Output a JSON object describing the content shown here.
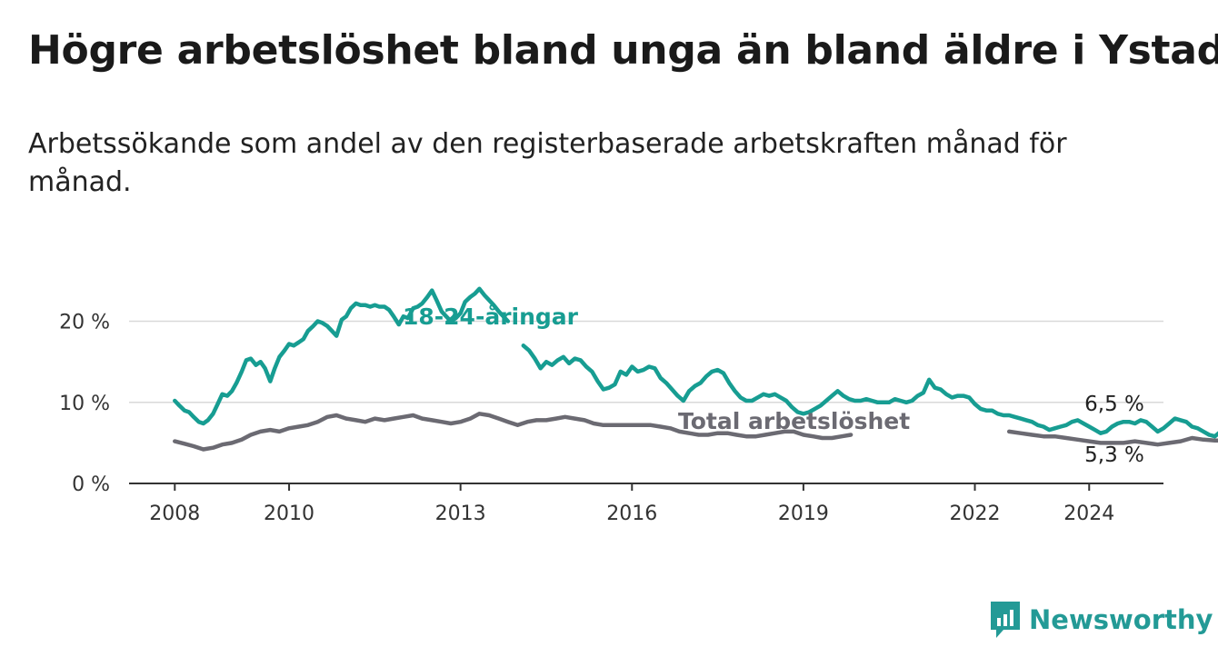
{
  "title": "Högre arbetslöshet bland unga än bland äldre i Ystad",
  "subtitle": "Arbetssökande som andel av den registerbaserade arbetskraften månad för månad.",
  "brand": {
    "name": "Newsworthy",
    "color": "#239a96"
  },
  "chart_data": {
    "type": "line",
    "x_ticks": [
      2008,
      2010,
      2013,
      2016,
      2019,
      2022,
      2024
    ],
    "y_ticks": [
      "0 %",
      "10 %",
      "20 %"
    ],
    "y_tick_values": [
      0,
      10,
      20
    ],
    "xlim": [
      2007.2,
      2025.3
    ],
    "ylim": [
      0,
      26
    ],
    "grid": "horizontal",
    "series": [
      {
        "name": "18-24-åringar",
        "color": "#179d92",
        "end_label": "6,5 %",
        "points": [
          [
            2008.0,
            10.2
          ],
          [
            2008.08,
            9.6
          ],
          [
            2008.17,
            9.0
          ],
          [
            2008.25,
            8.8
          ],
          [
            2008.33,
            8.2
          ],
          [
            2008.42,
            7.6
          ],
          [
            2008.5,
            7.4
          ],
          [
            2008.58,
            7.8
          ],
          [
            2008.67,
            8.6
          ],
          [
            2008.75,
            9.8
          ],
          [
            2008.83,
            11.0
          ],
          [
            2008.92,
            10.8
          ],
          [
            2009.0,
            11.4
          ],
          [
            2009.08,
            12.4
          ],
          [
            2009.17,
            13.8
          ],
          [
            2009.25,
            15.2
          ],
          [
            2009.33,
            15.4
          ],
          [
            2009.42,
            14.6
          ],
          [
            2009.5,
            15.0
          ],
          [
            2009.58,
            14.2
          ],
          [
            2009.67,
            12.6
          ],
          [
            2009.75,
            14.2
          ],
          [
            2009.83,
            15.6
          ],
          [
            2009.92,
            16.4
          ],
          [
            2010.0,
            17.2
          ],
          [
            2010.08,
            17.0
          ],
          [
            2010.17,
            17.4
          ],
          [
            2010.25,
            17.8
          ],
          [
            2010.33,
            18.8
          ],
          [
            2010.42,
            19.4
          ],
          [
            2010.5,
            20.0
          ],
          [
            2010.58,
            19.8
          ],
          [
            2010.67,
            19.4
          ],
          [
            2010.75,
            18.8
          ],
          [
            2010.83,
            18.2
          ],
          [
            2010.92,
            20.2
          ],
          [
            2011.0,
            20.6
          ],
          [
            2011.08,
            21.6
          ],
          [
            2011.17,
            22.2
          ],
          [
            2011.25,
            22.0
          ],
          [
            2011.33,
            22.0
          ],
          [
            2011.42,
            21.8
          ],
          [
            2011.5,
            22.0
          ],
          [
            2011.58,
            21.8
          ],
          [
            2011.67,
            21.8
          ],
          [
            2011.75,
            21.4
          ],
          [
            2011.83,
            20.6
          ],
          [
            2011.92,
            19.6
          ],
          [
            2012.0,
            20.6
          ],
          [
            2012.08,
            20.4
          ],
          [
            2012.17,
            21.6
          ],
          [
            2012.25,
            21.8
          ],
          [
            2012.33,
            22.2
          ],
          [
            2012.42,
            23.0
          ],
          [
            2012.5,
            23.8
          ],
          [
            2012.58,
            22.6
          ],
          [
            2012.67,
            21.2
          ],
          [
            2012.75,
            20.6
          ],
          [
            2012.83,
            20.0
          ],
          [
            2012.92,
            20.4
          ],
          [
            2013.0,
            21.0
          ],
          [
            2013.08,
            22.4
          ],
          [
            2013.17,
            23.0
          ],
          [
            2013.25,
            23.4
          ],
          [
            2013.33,
            24.0
          ],
          [
            2013.42,
            23.2
          ],
          [
            2013.5,
            22.6
          ],
          [
            2013.58,
            22.0
          ],
          [
            2013.67,
            21.2
          ],
          [
            2013.75,
            20.6
          ],
          [
            2013.83,
            20.0
          ]
        ]
      },
      {
        "name": "",
        "color": "#179d92",
        "points": [
          [
            2014.1,
            17.0
          ],
          [
            2014.2,
            16.4
          ],
          [
            2014.3,
            15.4
          ],
          [
            2014.4,
            14.2
          ],
          [
            2014.5,
            15.0
          ],
          [
            2014.6,
            14.6
          ],
          [
            2014.7,
            15.2
          ],
          [
            2014.8,
            15.6
          ],
          [
            2014.9,
            14.8
          ],
          [
            2015.0,
            15.4
          ],
          [
            2015.1,
            15.2
          ],
          [
            2015.2,
            14.4
          ],
          [
            2015.3,
            13.8
          ],
          [
            2015.4,
            12.6
          ],
          [
            2015.5,
            11.6
          ],
          [
            2015.6,
            11.8
          ],
          [
            2015.7,
            12.2
          ],
          [
            2015.8,
            13.8
          ],
          [
            2015.9,
            13.4
          ],
          [
            2016.0,
            14.4
          ],
          [
            2016.1,
            13.8
          ],
          [
            2016.2,
            14.0
          ],
          [
            2016.3,
            14.4
          ],
          [
            2016.4,
            14.2
          ],
          [
            2016.5,
            13.0
          ],
          [
            2016.6,
            12.4
          ],
          [
            2016.7,
            11.6
          ],
          [
            2016.8,
            10.8
          ],
          [
            2016.9,
            10.2
          ],
          [
            2017.0,
            11.4
          ],
          [
            2017.1,
            12.0
          ],
          [
            2017.2,
            12.4
          ],
          [
            2017.3,
            13.2
          ],
          [
            2017.4,
            13.8
          ],
          [
            2017.5,
            14.0
          ],
          [
            2017.6,
            13.6
          ],
          [
            2017.7,
            12.4
          ],
          [
            2017.8,
            11.4
          ],
          [
            2017.9,
            10.6
          ],
          [
            2018.0,
            10.2
          ],
          [
            2018.1,
            10.2
          ],
          [
            2018.2,
            10.6
          ],
          [
            2018.3,
            11.0
          ],
          [
            2018.4,
            10.8
          ],
          [
            2018.5,
            11.0
          ],
          [
            2018.6,
            10.6
          ],
          [
            2018.7,
            10.2
          ],
          [
            2018.8,
            9.4
          ],
          [
            2018.9,
            8.8
          ],
          [
            2019.0,
            8.6
          ],
          [
            2019.1,
            8.8
          ],
          [
            2019.2,
            9.2
          ],
          [
            2019.3,
            9.6
          ],
          [
            2019.4,
            10.2
          ],
          [
            2019.5,
            10.8
          ],
          [
            2019.6,
            11.4
          ],
          [
            2019.7,
            10.8
          ],
          [
            2019.8,
            10.4
          ],
          [
            2019.9,
            10.2
          ],
          [
            2020.0,
            10.2
          ],
          [
            2020.1,
            10.4
          ],
          [
            2020.2,
            10.2
          ],
          [
            2020.3,
            10.0
          ],
          [
            2020.4,
            10.0
          ],
          [
            2020.5,
            10.0
          ],
          [
            2020.6,
            10.4
          ],
          [
            2020.7,
            10.2
          ],
          [
            2020.8,
            10.0
          ],
          [
            2020.9,
            10.2
          ],
          [
            2021.0,
            10.8
          ],
          [
            2021.1,
            11.2
          ],
          [
            2021.2,
            12.8
          ],
          [
            2021.3,
            11.8
          ],
          [
            2021.4,
            11.6
          ],
          [
            2021.5,
            11.0
          ],
          [
            2021.6,
            10.6
          ],
          [
            2021.7,
            10.8
          ],
          [
            2021.8,
            10.8
          ],
          [
            2021.9,
            10.6
          ],
          [
            2022.0,
            9.8
          ],
          [
            2022.1,
            9.2
          ],
          [
            2022.2,
            9.0
          ],
          [
            2022.3,
            9.0
          ],
          [
            2022.4,
            8.6
          ],
          [
            2022.5,
            8.4
          ],
          [
            2022.6,
            8.4
          ],
          [
            2022.7,
            8.2
          ],
          [
            2022.8,
            8.0
          ],
          [
            2022.9,
            7.8
          ],
          [
            2023.0,
            7.6
          ],
          [
            2023.1,
            7.2
          ],
          [
            2023.2,
            7.0
          ],
          [
            2023.3,
            6.6
          ],
          [
            2023.4,
            6.8
          ],
          [
            2023.5,
            7.0
          ],
          [
            2023.6,
            7.2
          ],
          [
            2023.7,
            7.6
          ],
          [
            2023.8,
            7.8
          ],
          [
            2023.9,
            7.4
          ],
          [
            2024.0,
            7.0
          ],
          [
            2024.1,
            6.6
          ],
          [
            2024.2,
            6.2
          ],
          [
            2024.3,
            6.4
          ],
          [
            2024.4,
            7.0
          ],
          [
            2024.5,
            7.4
          ],
          [
            2024.6,
            7.6
          ],
          [
            2024.7,
            7.6
          ],
          [
            2024.8,
            7.4
          ],
          [
            2024.9,
            7.8
          ],
          [
            2025.0,
            7.6
          ],
          [
            2025.1,
            7.0
          ],
          [
            2025.2,
            6.4
          ],
          [
            2025.3,
            6.8
          ],
          [
            2025.4,
            7.4
          ],
          [
            2025.5,
            8.0
          ],
          [
            2025.6,
            7.8
          ],
          [
            2025.7,
            7.6
          ],
          [
            2025.8,
            7.0
          ],
          [
            2025.9,
            6.8
          ],
          [
            2026.0,
            6.4
          ],
          [
            2026.1,
            6.0
          ],
          [
            2026.2,
            5.8
          ],
          [
            2026.3,
            6.4
          ],
          [
            2026.4,
            6.5
          ]
        ]
      },
      {
        "name": "Total arbetslöshet",
        "color": "#6b6a72",
        "end_label": "5,3 %",
        "points": [
          [
            2008.0,
            5.2
          ],
          [
            2008.17,
            4.9
          ],
          [
            2008.33,
            4.6
          ],
          [
            2008.5,
            4.2
          ],
          [
            2008.67,
            4.4
          ],
          [
            2008.83,
            4.8
          ],
          [
            2009.0,
            5.0
          ],
          [
            2009.17,
            5.4
          ],
          [
            2009.33,
            6.0
          ],
          [
            2009.5,
            6.4
          ],
          [
            2009.67,
            6.6
          ],
          [
            2009.83,
            6.4
          ],
          [
            2010.0,
            6.8
          ],
          [
            2010.17,
            7.0
          ],
          [
            2010.33,
            7.2
          ],
          [
            2010.5,
            7.6
          ],
          [
            2010.67,
            8.2
          ],
          [
            2010.83,
            8.4
          ],
          [
            2011.0,
            8.0
          ],
          [
            2011.17,
            7.8
          ],
          [
            2011.33,
            7.6
          ],
          [
            2011.5,
            8.0
          ],
          [
            2011.67,
            7.8
          ],
          [
            2011.83,
            8.0
          ],
          [
            2012.0,
            8.2
          ],
          [
            2012.17,
            8.4
          ],
          [
            2012.33,
            8.0
          ],
          [
            2012.5,
            7.8
          ],
          [
            2012.67,
            7.6
          ],
          [
            2012.83,
            7.4
          ],
          [
            2013.0,
            7.6
          ],
          [
            2013.17,
            8.0
          ],
          [
            2013.33,
            8.6
          ],
          [
            2013.5,
            8.4
          ],
          [
            2013.67,
            8.0
          ],
          [
            2013.83,
            7.6
          ],
          [
            2014.0,
            7.2
          ],
          [
            2014.17,
            7.6
          ],
          [
            2014.33,
            7.8
          ],
          [
            2014.5,
            7.8
          ],
          [
            2014.67,
            8.0
          ],
          [
            2014.83,
            8.2
          ],
          [
            2015.0,
            8.0
          ],
          [
            2015.17,
            7.8
          ],
          [
            2015.33,
            7.4
          ],
          [
            2015.5,
            7.2
          ],
          [
            2015.67,
            7.2
          ],
          [
            2015.83,
            7.2
          ],
          [
            2016.0,
            7.2
          ],
          [
            2016.17,
            7.2
          ],
          [
            2016.33,
            7.2
          ],
          [
            2016.5,
            7.0
          ],
          [
            2016.67,
            6.8
          ],
          [
            2016.83,
            6.4
          ],
          [
            2017.0,
            6.2
          ],
          [
            2017.17,
            6.0
          ],
          [
            2017.33,
            6.0
          ],
          [
            2017.5,
            6.2
          ],
          [
            2017.67,
            6.2
          ],
          [
            2017.83,
            6.0
          ],
          [
            2018.0,
            5.8
          ],
          [
            2018.17,
            5.8
          ],
          [
            2018.33,
            6.0
          ],
          [
            2018.5,
            6.2
          ],
          [
            2018.67,
            6.4
          ],
          [
            2018.83,
            6.4
          ],
          [
            2019.0,
            6.0
          ],
          [
            2019.17,
            5.8
          ],
          [
            2019.33,
            5.6
          ],
          [
            2019.5,
            5.6
          ],
          [
            2019.67,
            5.8
          ],
          [
            2019.83,
            6.0
          ]
        ]
      },
      {
        "name": "",
        "color": "#6b6a72",
        "points": [
          [
            2022.6,
            6.4
          ],
          [
            2022.8,
            6.2
          ],
          [
            2023.0,
            6.0
          ],
          [
            2023.2,
            5.8
          ],
          [
            2023.4,
            5.8
          ],
          [
            2023.6,
            5.6
          ],
          [
            2023.8,
            5.4
          ],
          [
            2024.0,
            5.2
          ],
          [
            2024.2,
            5.0
          ],
          [
            2024.4,
            5.0
          ],
          [
            2024.6,
            5.0
          ],
          [
            2024.8,
            5.2
          ],
          [
            2025.0,
            5.0
          ],
          [
            2025.2,
            4.8
          ],
          [
            2025.4,
            5.0
          ],
          [
            2025.6,
            5.2
          ],
          [
            2025.8,
            5.6
          ],
          [
            2026.0,
            5.4
          ],
          [
            2026.2,
            5.3
          ],
          [
            2026.4,
            5.3
          ]
        ]
      }
    ]
  }
}
